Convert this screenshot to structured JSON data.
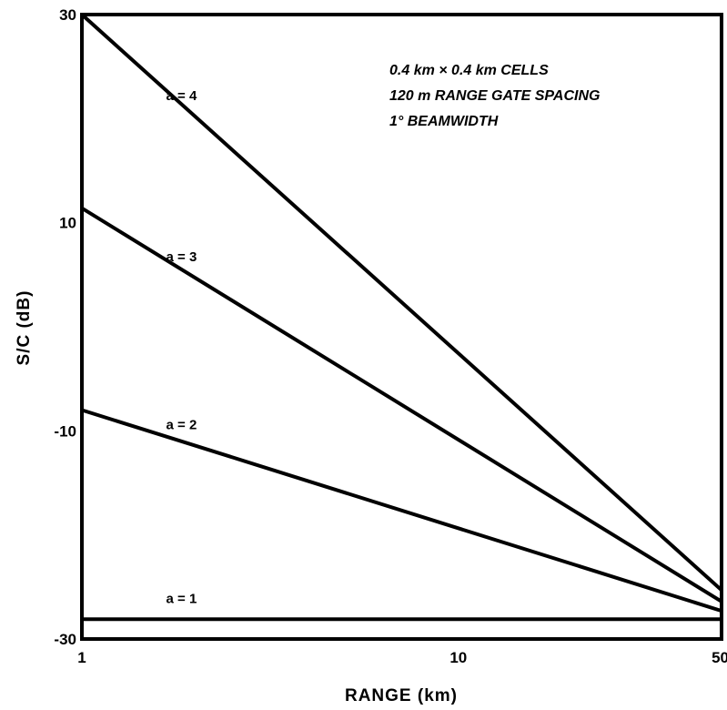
{
  "chart_data": {
    "type": "line",
    "xscale": "log",
    "xlim": [
      1,
      50
    ],
    "ylim": [
      -30,
      30
    ],
    "xlabel": "RANGE (km)",
    "ylabel": "S/C (dB)",
    "xticks": [
      1,
      10,
      50
    ],
    "yticks": [
      30,
      10,
      -10,
      -30
    ],
    "annotations": [
      "0.4 km × 0.4 km CELLS",
      "120 m RANGE GATE SPACING",
      "1° BEAMWIDTH"
    ],
    "series": [
      {
        "name": "a = 4",
        "x": [
          1,
          50
        ],
        "y": [
          30,
          -25.3
        ]
      },
      {
        "name": "a = 3",
        "x": [
          1,
          50
        ],
        "y": [
          11.4,
          -26.4
        ]
      },
      {
        "name": "a = 2",
        "x": [
          1,
          50
        ],
        "y": [
          -8,
          -27.3
        ]
      },
      {
        "name": "a = 1",
        "x": [
          1,
          50
        ],
        "y": [
          -28.1,
          -28.1
        ]
      }
    ],
    "line_color": "#000000",
    "grid": false
  }
}
